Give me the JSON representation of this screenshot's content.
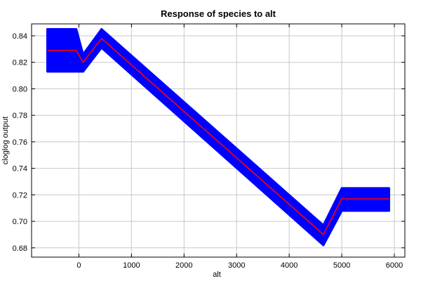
{
  "chart_data": {
    "type": "line",
    "title": "Response of species to alt",
    "xlabel": "alt",
    "ylabel": "cloglog output",
    "xlim": [
      -900,
      6200
    ],
    "ylim": [
      0.673,
      0.849
    ],
    "xticks": [
      0,
      1000,
      2000,
      3000,
      4000,
      5000,
      6000
    ],
    "yticks": [
      0.68,
      0.7,
      0.72,
      0.74,
      0.76,
      0.78,
      0.8,
      0.82,
      0.84
    ],
    "ytick_labels": [
      "0.68",
      "0.70",
      "0.72",
      "0.74",
      "0.76",
      "0.78",
      "0.80",
      "0.82",
      "0.84"
    ],
    "grid": true,
    "series": [
      {
        "role": "mean",
        "color": "#ff0000",
        "x": [
          -600,
          -50,
          80,
          430,
          4650,
          5000,
          5900
        ],
        "y": [
          0.829,
          0.829,
          0.82,
          0.838,
          0.69,
          0.717,
          0.717
        ]
      },
      {
        "role": "band",
        "color": "#0000ff",
        "x": [
          -600,
          -50,
          80,
          430,
          4650,
          5000,
          5900
        ],
        "upper": [
          0.845,
          0.845,
          0.826,
          0.845,
          0.697,
          0.725,
          0.725
        ],
        "lower": [
          0.813,
          0.813,
          0.813,
          0.831,
          0.682,
          0.708,
          0.708
        ]
      }
    ]
  }
}
